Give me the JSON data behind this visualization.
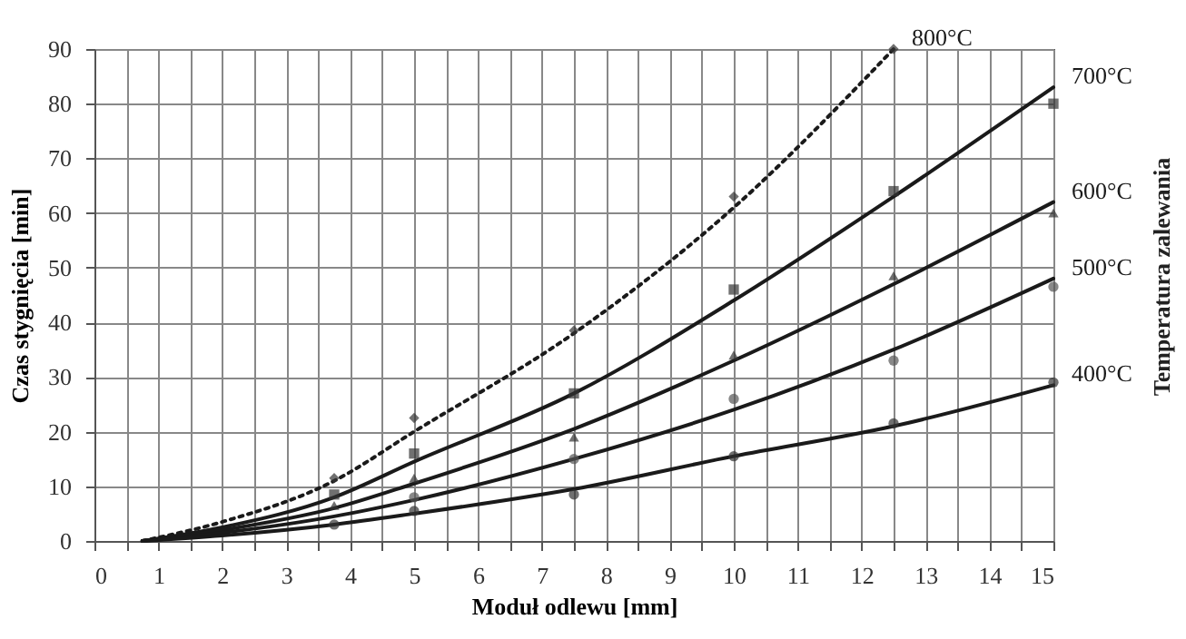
{
  "chart_data": {
    "type": "line",
    "xlabel": "Moduł odlewu [mm]",
    "ylabel": "Czas stygnięcia [min]",
    "legend_title": "Temperatura zalewania",
    "legend": false,
    "grid": true,
    "xlim": [
      0,
      15
    ],
    "ylim": [
      0,
      90
    ],
    "xticks": [
      0,
      {
        "value": 0.5,
        "label": null
      },
      1,
      {
        "value": 1.5,
        "label": null
      },
      2,
      {
        "value": 2.5,
        "label": null
      },
      3,
      {
        "value": 3.5,
        "label": null
      },
      4,
      {
        "value": 4.5,
        "label": null
      },
      5,
      {
        "value": 5.5,
        "label": null
      },
      6,
      {
        "value": 6.5,
        "label": null
      },
      7,
      {
        "value": 7.5,
        "label": null
      },
      8,
      {
        "value": 8.5,
        "label": null
      },
      9,
      {
        "value": 9.5,
        "label": null
      },
      10,
      {
        "value": 10.5,
        "label": null
      },
      11,
      {
        "value": 11.5,
        "label": null
      },
      12,
      {
        "value": 12.5,
        "label": null
      },
      13,
      {
        "value": 13.5,
        "label": null
      },
      14,
      {
        "value": 14.5,
        "label": null
      },
      15
    ],
    "yticks": [
      0,
      10,
      20,
      30,
      40,
      50,
      60,
      70,
      80,
      90
    ],
    "series": [
      {
        "name": "800°C",
        "line_style": "dotted",
        "color": "#1a1a1a",
        "x": [
          0.75,
          2,
          3.75,
          5,
          7.5,
          10,
          12.5
        ],
        "values": [
          0,
          3.5,
          11,
          20,
          38,
          61,
          90
        ]
      },
      {
        "name": "700°C",
        "line_style": "solid",
        "color": "#1a1a1a",
        "x": [
          0.75,
          2,
          3.75,
          5,
          7.5,
          10,
          12.5,
          15
        ],
        "values": [
          0,
          2.5,
          8,
          14.5,
          27,
          44,
          63,
          83
        ]
      },
      {
        "name": "600°C",
        "line_style": "solid",
        "color": "#1a1a1a",
        "x": [
          0.75,
          2,
          3.75,
          5,
          7.5,
          10,
          12.5,
          15
        ],
        "values": [
          0,
          2,
          6,
          10.5,
          20.5,
          33,
          47,
          62
        ]
      },
      {
        "name": "500°C",
        "line_style": "solid",
        "color": "#1a1a1a",
        "x": [
          0.75,
          2,
          3.75,
          5,
          7.5,
          10,
          12.5,
          15
        ],
        "values": [
          0,
          1.5,
          4.5,
          7.5,
          15,
          24,
          35,
          48
        ]
      },
      {
        "name": "400°C",
        "line_style": "solid",
        "color": "#1a1a1a",
        "x": [
          0.75,
          2,
          3.75,
          5,
          7.5,
          10,
          12.5,
          15
        ],
        "values": [
          0,
          1,
          3,
          5,
          9.5,
          15.5,
          21,
          28.5
        ]
      },
      {
        "type": "scatter",
        "marker": "diamond",
        "color": "#333333",
        "x": [
          3.75,
          5,
          7.5,
          10,
          12.5
        ],
        "values": [
          11.5,
          22.5,
          38.5,
          63,
          90
        ]
      },
      {
        "type": "scatter",
        "marker": "square",
        "color": "#333333",
        "x": [
          3.75,
          5,
          7.5,
          10,
          12.5,
          15
        ],
        "values": [
          8.5,
          16,
          27,
          46,
          64,
          80
        ]
      },
      {
        "type": "scatter",
        "marker": "triangle",
        "color": "#333333",
        "x": [
          3.75,
          5,
          7.5,
          10,
          12.5,
          15
        ],
        "values": [
          6.5,
          11.5,
          19,
          34,
          48.5,
          60
        ]
      },
      {
        "type": "scatter",
        "marker": "circle",
        "color": "#555555",
        "x": [
          5,
          7.5,
          10,
          12.5,
          15
        ],
        "values": [
          8,
          15,
          26,
          33,
          46.5
        ]
      },
      {
        "type": "scatter",
        "marker": "circle",
        "color": "#333333",
        "x": [
          3.75,
          5,
          7.5,
          10,
          12.5,
          15
        ],
        "values": [
          3,
          5.5,
          8.5,
          15.5,
          21.5,
          29
        ]
      }
    ]
  }
}
